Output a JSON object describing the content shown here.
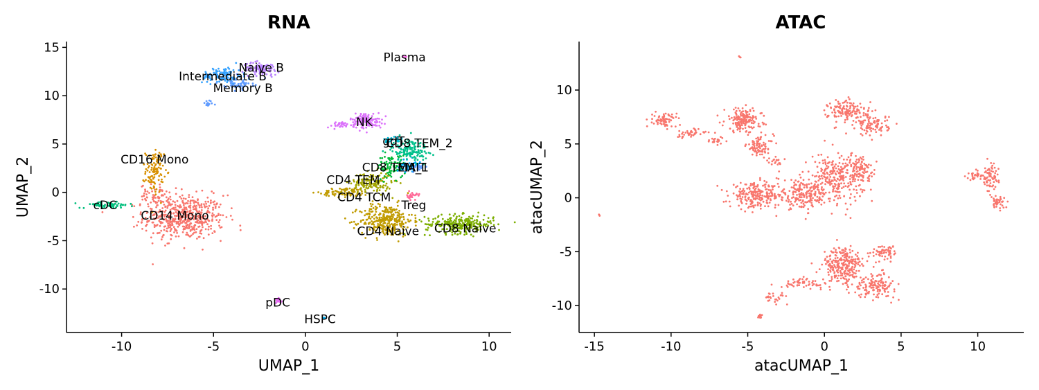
{
  "chart_data": [
    {
      "type": "scatter",
      "title": "RNA",
      "xlabel": "UMAP_1",
      "ylabel": "UMAP_2",
      "xlim": [
        -13.0,
        11.2
      ],
      "ylim": [
        -14.5,
        15.6
      ],
      "xticks": [
        -10,
        -5,
        0,
        5,
        10
      ],
      "xtick_labels": [
        "-10",
        "-5",
        "0",
        "5",
        "10"
      ],
      "yticks": [
        15,
        10,
        5,
        0,
        -5,
        -10
      ],
      "ytick_labels": [
        "15",
        "10",
        "5",
        "0",
        "-5",
        "-10"
      ],
      "grid": false,
      "legend": "none",
      "clusters": [
        {
          "name": "CD14 Mono",
          "color": "#F8766D",
          "label": "CD14 Mono",
          "label_x": -7.1,
          "label_y": -2.4,
          "blobs": [
            [
              -6.6,
              -2.6,
              2.0,
              2.1,
              520
            ],
            [
              -8.2,
              -0.3,
              0.7,
              1.0,
              60
            ]
          ]
        },
        {
          "name": "CD16 Mono",
          "color": "#D89000",
          "label": "CD16 Mono",
          "label_x": -8.2,
          "label_y": 3.4,
          "blobs": [
            [
              -8.2,
              2.2,
              0.45,
              2.0,
              110
            ]
          ]
        },
        {
          "name": "cDC",
          "color": "#00BF7D",
          "label": "cDC",
          "label_x": -10.9,
          "label_y": -1.3,
          "blobs": [
            [
              -10.8,
              -1.3,
              1.3,
              0.28,
              70
            ]
          ]
        },
        {
          "name": "CD4 Naive",
          "color": "#C09B00",
          "label": "CD4 Naive",
          "label_x": 4.5,
          "label_y": -4.0,
          "blobs": [
            [
              4.4,
              -2.9,
              1.3,
              1.5,
              320
            ],
            [
              2.2,
              0.0,
              1.2,
              0.45,
              90
            ]
          ]
        },
        {
          "name": "CD8 Naive",
          "color": "#7CAE00",
          "label": "CD8 Naive",
          "label_x": 8.7,
          "label_y": -3.7,
          "blobs": [
            [
              8.4,
              -3.3,
              1.7,
              0.85,
              260
            ]
          ]
        },
        {
          "name": "CD4 TCM",
          "color": "#A3A500",
          "label": "CD4 TCM",
          "label_x": 3.2,
          "label_y": -0.5,
          "blobs": [
            [
              3.6,
              1.0,
              1.0,
              1.0,
              150
            ]
          ]
        },
        {
          "name": "CD4 TEM",
          "color": "#00BA38",
          "label": "CD4 TEM",
          "label_x": 2.6,
          "label_y": 1.3,
          "blobs": [
            [
              4.7,
              2.7,
              0.7,
              1.1,
              90
            ]
          ]
        },
        {
          "name": "CD8 TEM_1",
          "color": "#00A9FF",
          "label": "CD8 TEM_1",
          "label_x": 4.9,
          "label_y": 2.6,
          "blobs": [
            [
              5.6,
              2.8,
              0.6,
              0.6,
              40
            ]
          ]
        },
        {
          "name": "CD8 TEM_2",
          "color": "#00C08B",
          "label": "CD8 TEM_2",
          "label_x": 6.2,
          "label_y": 5.1,
          "blobs": [
            [
              5.7,
              4.4,
              0.9,
              1.1,
              150
            ]
          ]
        },
        {
          "name": "gdT",
          "color": "#00BCD8",
          "label": "gdT",
          "label_x": 4.8,
          "label_y": 5.3,
          "blobs": [
            [
              4.8,
              5.4,
              0.45,
              0.45,
              30
            ]
          ]
        },
        {
          "name": "MAIT",
          "color": "#619CFF",
          "label": "MAIT",
          "label_x": 5.8,
          "label_y": 2.6,
          "blobs": [
            [
              6.1,
              2.6,
              0.35,
              0.35,
              25
            ]
          ]
        },
        {
          "name": "Treg",
          "color": "#FF6A98",
          "label": "Treg",
          "label_x": 5.9,
          "label_y": -1.3,
          "blobs": [
            [
              5.8,
              -0.4,
              0.25,
              0.35,
              25
            ]
          ]
        },
        {
          "name": "NK",
          "color": "#DB72FB",
          "label": "NK",
          "label_x": 3.2,
          "label_y": 7.3,
          "blobs": [
            [
              3.3,
              7.4,
              0.8,
              0.75,
              130
            ],
            [
              1.8,
              7.0,
              0.6,
              0.3,
              30
            ]
          ]
        },
        {
          "name": "Naive B",
          "color": "#B983FF",
          "label": "Naive B",
          "label_x": -2.4,
          "label_y": 12.9,
          "blobs": [
            [
              -2.4,
              12.8,
              0.9,
              0.6,
              90
            ]
          ]
        },
        {
          "name": "Intermediate B",
          "color": "#35A2FF",
          "label": "Intermediate B",
          "label_x": -4.5,
          "label_y": 12.0,
          "blobs": [
            [
              -4.5,
              12.1,
              1.0,
              0.8,
              110
            ]
          ]
        },
        {
          "name": "Memory B",
          "color": "#619CFF",
          "label": "Memory B",
          "label_x": -3.4,
          "label_y": 10.8,
          "blobs": [
            [
              -3.6,
              11.2,
              0.7,
              0.5,
              50
            ],
            [
              -5.3,
              9.1,
              0.3,
              0.4,
              14
            ]
          ]
        },
        {
          "name": "Plasma",
          "color": "#F564E3",
          "label": "Plasma",
          "label_x": 5.4,
          "label_y": 14.0,
          "blobs": [
            [
              5.4,
              14.0,
              0.1,
              0.1,
              4
            ]
          ]
        },
        {
          "name": "pDC",
          "color": "#E76BF3",
          "label": "pDC",
          "label_x": -1.5,
          "label_y": -11.4,
          "blobs": [
            [
              -1.5,
              -11.2,
              0.25,
              0.25,
              28
            ]
          ]
        },
        {
          "name": "HSPC",
          "color": "#00B0F6",
          "label": "HSPC",
          "label_x": 0.8,
          "label_y": -13.1,
          "blobs": [
            [
              1.0,
              -13.0,
              0.1,
              0.1,
              4
            ]
          ]
        }
      ]
    },
    {
      "type": "scatter",
      "title": "ATAC",
      "xlabel": "atacUMAP_1",
      "ylabel": "atacUMAP_2",
      "xlim": [
        -16.0,
        13.0
      ],
      "ylim": [
        -12.5,
        14.5
      ],
      "xticks": [
        -15,
        -10,
        -5,
        0,
        5,
        10
      ],
      "xtick_labels": [
        "-15",
        "-10",
        "-5",
        "0",
        "5",
        "10"
      ],
      "yticks": [
        10,
        5,
        0,
        -5,
        -10
      ],
      "ytick_labels": [
        "10",
        "5",
        "0",
        "-5",
        "-10"
      ],
      "grid": false,
      "legend": "none",
      "color": "#F8766D",
      "blobs": [
        [
          -10.4,
          7.2,
          0.7,
          0.6,
          70
        ],
        [
          -8.8,
          6.0,
          1.0,
          0.4,
          40
        ],
        [
          -7.0,
          5.3,
          0.7,
          0.3,
          20
        ],
        [
          -5.3,
          7.2,
          1.1,
          1.0,
          170
        ],
        [
          -4.2,
          4.8,
          0.8,
          0.9,
          80
        ],
        [
          -3.2,
          3.3,
          0.5,
          0.5,
          20
        ],
        [
          -4.5,
          0.2,
          1.5,
          1.0,
          220
        ],
        [
          -1.4,
          0.3,
          1.6,
          1.2,
          200
        ],
        [
          0.8,
          2.0,
          1.6,
          2.0,
          270
        ],
        [
          1.6,
          8.0,
          1.2,
          1.0,
          150
        ],
        [
          3.2,
          6.7,
          0.9,
          0.9,
          90
        ],
        [
          2.5,
          2.6,
          0.9,
          1.0,
          80
        ],
        [
          10.8,
          1.8,
          0.5,
          1.2,
          70
        ],
        [
          9.8,
          2.1,
          0.5,
          0.4,
          25
        ],
        [
          11.3,
          -0.5,
          0.4,
          0.5,
          40
        ],
        [
          1.2,
          -6.3,
          1.2,
          1.6,
          260
        ],
        [
          3.3,
          -8.1,
          1.2,
          1.0,
          140
        ],
        [
          4.0,
          -5.0,
          0.9,
          0.6,
          60
        ],
        [
          -1.5,
          -7.9,
          1.2,
          0.4,
          55
        ],
        [
          -3.2,
          -9.3,
          0.7,
          0.4,
          25
        ],
        [
          -4.2,
          -11.0,
          0.2,
          0.2,
          10
        ],
        [
          -14.7,
          -1.6,
          0.1,
          0.1,
          3
        ],
        [
          -5.5,
          13.1,
          0.1,
          0.1,
          3
        ]
      ]
    }
  ]
}
